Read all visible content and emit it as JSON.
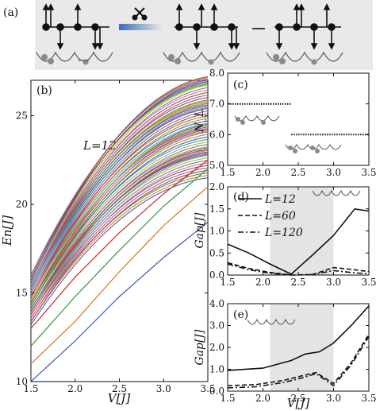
{
  "panel_labels": {
    "a": "(a)",
    "b": "(b)",
    "c": "(c)",
    "d": "(d)",
    "e": "(e)"
  },
  "charts": {
    "b": {
      "type": "line",
      "xlabel": "V[J]",
      "ylabel": "En[J]",
      "annotation": "L=12",
      "xlim": [
        1.5,
        3.5
      ],
      "ylim": [
        10,
        27
      ],
      "xticks": [
        "1.5",
        "2.0",
        "2.5",
        "3.0",
        "3.5"
      ],
      "yticks": [
        "10",
        "15",
        "20",
        "25"
      ],
      "series_count": 56,
      "low_lines": [
        {
          "x": [
            1.5,
            2.0,
            2.5,
            3.0,
            3.5
          ],
          "y": [
            10.0,
            12.3,
            14.8,
            17.0,
            19.0
          ],
          "color": "#4a5fc0"
        },
        {
          "x": [
            1.5,
            2.0,
            2.5,
            3.0,
            3.5
          ],
          "y": [
            11.0,
            13.4,
            16.2,
            18.8,
            21.0
          ],
          "color": "#e07a2e"
        },
        {
          "x": [
            1.5,
            2.0,
            2.5,
            3.0,
            3.5
          ],
          "y": [
            12.0,
            14.8,
            17.4,
            19.9,
            22.0
          ],
          "color": "#3f9b47"
        },
        {
          "x": [
            1.5,
            2.0,
            2.5,
            3.0,
            3.5
          ],
          "y": [
            13.0,
            15.9,
            18.4,
            20.6,
            22.5
          ],
          "color": "#c43b3b"
        }
      ]
    },
    "c": {
      "type": "line",
      "ylabel": "N_L",
      "xlim": [
        1.5,
        3.5
      ],
      "ylim": [
        5.0,
        8.0
      ],
      "xticks": [
        "1.5",
        "2.0",
        "2.5",
        "3.0",
        "3.5"
      ],
      "yticks": [
        "5.0",
        "6.0",
        "7.0",
        "8.0"
      ],
      "series": [
        {
          "x": [
            1.5,
            2.4
          ],
          "y": [
            7.0,
            7.0
          ]
        },
        {
          "x": [
            2.4,
            3.5
          ],
          "y": [
            6.0,
            6.0
          ]
        }
      ]
    },
    "d": {
      "type": "line",
      "ylabel": "Gap[J]",
      "xlim": [
        1.5,
        3.5
      ],
      "ylim": [
        0.0,
        2.0
      ],
      "xticks": [
        "1.5",
        "2.0",
        "2.5",
        "3.0",
        "3.5"
      ],
      "yticks": [
        "0.0",
        "0.5",
        "1.0",
        "1.5",
        "2.0"
      ],
      "shade": [
        2.1,
        3.0
      ],
      "series": [
        {
          "name": "L=12",
          "dash": "solid",
          "x": [
            1.5,
            1.8,
            2.1,
            2.4,
            2.7,
            3.0,
            3.3,
            3.5
          ],
          "y": [
            0.7,
            0.5,
            0.25,
            0.02,
            0.45,
            0.9,
            1.5,
            1.45
          ]
        },
        {
          "name": "L=60",
          "dash": "dashed",
          "x": [
            1.5,
            1.8,
            2.1,
            2.4,
            2.7,
            3.0,
            3.3,
            3.5
          ],
          "y": [
            0.28,
            0.15,
            0.06,
            0.0,
            0.01,
            0.17,
            0.12,
            0.08
          ]
        },
        {
          "name": "L=120",
          "dash": "dashdot",
          "x": [
            1.5,
            1.8,
            2.1,
            2.4,
            2.7,
            3.0,
            3.3,
            3.5
          ],
          "y": [
            0.25,
            0.12,
            0.04,
            0.0,
            0.01,
            0.1,
            0.05,
            0.03
          ]
        }
      ]
    },
    "e": {
      "type": "line",
      "xlabel": "V[J]",
      "ylabel": "Gap[J]",
      "xlim": [
        1.5,
        3.5
      ],
      "ylim": [
        0.0,
        4.0
      ],
      "xticks": [
        "1.5",
        "2.0",
        "2.5",
        "3.0",
        "3.5"
      ],
      "yticks": [
        "0.0",
        "1.0",
        "2.0",
        "3.0",
        "4.0"
      ],
      "shade": [
        2.1,
        3.0
      ],
      "series": [
        {
          "dash": "solid",
          "x": [
            1.5,
            2.0,
            2.4,
            2.6,
            2.8,
            3.0,
            3.25,
            3.5
          ],
          "y": [
            0.95,
            1.05,
            1.4,
            1.7,
            1.8,
            2.2,
            3.0,
            3.9
          ]
        },
        {
          "dash": "dashed",
          "x": [
            1.5,
            1.9,
            2.3,
            2.55,
            2.75,
            3.0,
            3.25,
            3.5
          ],
          "y": [
            0.25,
            0.3,
            0.5,
            0.7,
            0.85,
            0.35,
            1.3,
            2.6
          ]
        },
        {
          "dash": "dashdot",
          "x": [
            1.5,
            1.9,
            2.3,
            2.55,
            2.75,
            3.0,
            3.25,
            3.5
          ],
          "y": [
            0.15,
            0.2,
            0.4,
            0.6,
            0.8,
            0.25,
            1.2,
            2.5
          ]
        }
      ]
    }
  }
}
